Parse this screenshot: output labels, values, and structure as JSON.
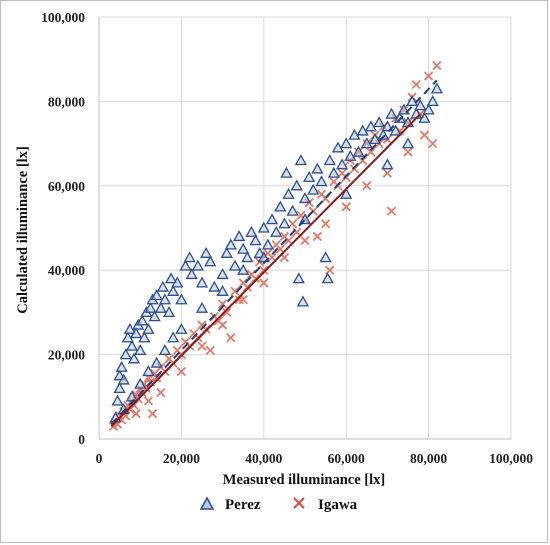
{
  "chart_data": {
    "type": "scatter",
    "xlabel": "Measured illuminance  [lx]",
    "ylabel": "Calculated illuminance  [lx]",
    "xlim": [
      0,
      100000
    ],
    "ylim": [
      0,
      100000
    ],
    "x_ticks": [
      "0",
      "20,000",
      "40,000",
      "60,000",
      "80,000",
      "100,000"
    ],
    "y_ticks": [
      "0",
      "20,000",
      "40,000",
      "60,000",
      "80,000",
      "100,000"
    ],
    "grid": true,
    "legend_position": "bottom",
    "series": [
      {
        "name": "Perez",
        "marker": "triangle",
        "color": "#2e4f8a",
        "fill": "#b7c9e6",
        "trendline": {
          "style": "dashed",
          "color": "#1f3f7a",
          "points": [
            [
              3000,
              3500
            ],
            [
              82000,
              85000
            ]
          ]
        },
        "points": [
          [
            4000,
            5000
          ],
          [
            4500,
            9000
          ],
          [
            5000,
            12000
          ],
          [
            5000,
            15000
          ],
          [
            5500,
            17000
          ],
          [
            6000,
            14000
          ],
          [
            6500,
            20000
          ],
          [
            7000,
            24000
          ],
          [
            7500,
            26000
          ],
          [
            8000,
            22000
          ],
          [
            8500,
            19000
          ],
          [
            9000,
            25000
          ],
          [
            9500,
            27000
          ],
          [
            10000,
            21000
          ],
          [
            10500,
            28000
          ],
          [
            11000,
            24000
          ],
          [
            11500,
            30000
          ],
          [
            12000,
            26000
          ],
          [
            12500,
            31000
          ],
          [
            13000,
            33000
          ],
          [
            13500,
            29000
          ],
          [
            14000,
            34000
          ],
          [
            15000,
            31000
          ],
          [
            15500,
            36000
          ],
          [
            16000,
            33000
          ],
          [
            17000,
            30000
          ],
          [
            17500,
            38000
          ],
          [
            18000,
            35000
          ],
          [
            19000,
            37000
          ],
          [
            20000,
            33000
          ],
          [
            21000,
            41000
          ],
          [
            22000,
            43000
          ],
          [
            22500,
            39000
          ],
          [
            24000,
            41000
          ],
          [
            25000,
            37000
          ],
          [
            26000,
            44000
          ],
          [
            27000,
            42000
          ],
          [
            28000,
            36000
          ],
          [
            30000,
            39000
          ],
          [
            31000,
            44000
          ],
          [
            32000,
            46000
          ],
          [
            33000,
            41000
          ],
          [
            34000,
            48000
          ],
          [
            35000,
            45000
          ],
          [
            36000,
            43000
          ],
          [
            37000,
            49000
          ],
          [
            38000,
            47000
          ],
          [
            39000,
            44000
          ],
          [
            40000,
            50000
          ],
          [
            41000,
            46000
          ],
          [
            42000,
            52000
          ],
          [
            43000,
            49000
          ],
          [
            44000,
            55000
          ],
          [
            45000,
            51000
          ],
          [
            45500,
            63000
          ],
          [
            46000,
            58000
          ],
          [
            47000,
            54000
          ],
          [
            48000,
            60000
          ],
          [
            48500,
            38000
          ],
          [
            49000,
            66000
          ],
          [
            49500,
            32500
          ],
          [
            50000,
            57000
          ],
          [
            51000,
            62000
          ],
          [
            52000,
            59000
          ],
          [
            53000,
            64000
          ],
          [
            54000,
            61000
          ],
          [
            55000,
            43000
          ],
          [
            55500,
            38000
          ],
          [
            56000,
            66000
          ],
          [
            57000,
            63000
          ],
          [
            58000,
            69000
          ],
          [
            59000,
            65000
          ],
          [
            60000,
            70000
          ],
          [
            61000,
            67000
          ],
          [
            62000,
            72000
          ],
          [
            63000,
            68000
          ],
          [
            64000,
            73000
          ],
          [
            65000,
            70000
          ],
          [
            66000,
            74000
          ],
          [
            67000,
            71000
          ],
          [
            68000,
            75000
          ],
          [
            69000,
            72000
          ],
          [
            70000,
            74000
          ],
          [
            71000,
            77000
          ],
          [
            72000,
            73000
          ],
          [
            73000,
            76000
          ],
          [
            74000,
            78000
          ],
          [
            75000,
            75000
          ],
          [
            76000,
            80000
          ],
          [
            77000,
            77000
          ],
          [
            78000,
            79000
          ],
          [
            79000,
            76000
          ],
          [
            80000,
            78000
          ],
          [
            81000,
            80000
          ],
          [
            82000,
            83000
          ],
          [
            6000,
            7000
          ],
          [
            8000,
            10000
          ],
          [
            10000,
            13000
          ],
          [
            12000,
            16000
          ],
          [
            14000,
            18000
          ],
          [
            16000,
            21000
          ],
          [
            18000,
            24000
          ],
          [
            20000,
            26000
          ],
          [
            25000,
            31000
          ],
          [
            30000,
            35000
          ],
          [
            35000,
            40000
          ],
          [
            40000,
            43000
          ],
          [
            50000,
            52000
          ],
          [
            60000,
            58000
          ],
          [
            70000,
            65000
          ],
          [
            75000,
            70000
          ]
        ]
      },
      {
        "name": "Igawa",
        "marker": "x",
        "color": "#e07a6a",
        "trendline": {
          "style": "solid",
          "color": "#8b1a1a",
          "points": [
            [
              3000,
              3000
            ],
            [
              78000,
              77000
            ]
          ]
        },
        "points": [
          [
            3500,
            3000
          ],
          [
            4000,
            4000
          ],
          [
            4500,
            3500
          ],
          [
            5000,
            5500
          ],
          [
            5500,
            4500
          ],
          [
            6000,
            6500
          ],
          [
            6500,
            5500
          ],
          [
            7000,
            8000
          ],
          [
            7500,
            7000
          ],
          [
            8000,
            9000
          ],
          [
            8500,
            8000
          ],
          [
            9000,
            10500
          ],
          [
            9500,
            9500
          ],
          [
            10000,
            12000
          ],
          [
            10500,
            11000
          ],
          [
            11000,
            13000
          ],
          [
            11500,
            12000
          ],
          [
            12000,
            14500
          ],
          [
            12500,
            13500
          ],
          [
            13000,
            6000
          ],
          [
            13500,
            15500
          ],
          [
            14000,
            14500
          ],
          [
            15000,
            17000
          ],
          [
            16000,
            16000
          ],
          [
            17000,
            19000
          ],
          [
            18000,
            18000
          ],
          [
            19000,
            21000
          ],
          [
            20000,
            20000
          ],
          [
            21000,
            23000
          ],
          [
            22000,
            22000
          ],
          [
            23000,
            25000
          ],
          [
            24000,
            24000
          ],
          [
            25000,
            27000
          ],
          [
            26000,
            26000
          ],
          [
            27000,
            21000
          ],
          [
            28000,
            29000
          ],
          [
            29000,
            28000
          ],
          [
            30000,
            32000
          ],
          [
            31000,
            30000
          ],
          [
            32000,
            24000
          ],
          [
            33000,
            35000
          ],
          [
            34000,
            33000
          ],
          [
            35000,
            37000
          ],
          [
            36000,
            36000
          ],
          [
            37000,
            39000
          ],
          [
            38000,
            38000
          ],
          [
            39000,
            42000
          ],
          [
            40000,
            40000
          ],
          [
            41000,
            44000
          ],
          [
            42000,
            43000
          ],
          [
            43000,
            46000
          ],
          [
            44000,
            45000
          ],
          [
            45000,
            48000
          ],
          [
            46000,
            47000
          ],
          [
            47000,
            51000
          ],
          [
            48000,
            49000
          ],
          [
            49000,
            53000
          ],
          [
            50000,
            52000
          ],
          [
            51000,
            56000
          ],
          [
            52000,
            54000
          ],
          [
            53000,
            48000
          ],
          [
            54000,
            58000
          ],
          [
            55000,
            57000
          ],
          [
            56000,
            40000
          ],
          [
            57000,
            61000
          ],
          [
            58000,
            60000
          ],
          [
            59000,
            63000
          ],
          [
            60000,
            62000
          ],
          [
            61000,
            66000
          ],
          [
            62000,
            64000
          ],
          [
            63000,
            68000
          ],
          [
            64000,
            66000
          ],
          [
            65000,
            70000
          ],
          [
            66000,
            68000
          ],
          [
            67000,
            72000
          ],
          [
            68000,
            70000
          ],
          [
            69000,
            74000
          ],
          [
            70000,
            71000
          ],
          [
            71000,
            54000
          ],
          [
            72000,
            76000
          ],
          [
            73000,
            73000
          ],
          [
            74000,
            78000
          ],
          [
            75000,
            75000
          ],
          [
            76000,
            81000
          ],
          [
            77000,
            84000
          ],
          [
            78000,
            77000
          ],
          [
            79000,
            72000
          ],
          [
            80000,
            86000
          ],
          [
            81000,
            70000
          ],
          [
            82000,
            88500
          ],
          [
            9000,
            6000
          ],
          [
            12000,
            9000
          ],
          [
            15000,
            11000
          ],
          [
            20000,
            16000
          ],
          [
            25000,
            22000
          ],
          [
            30000,
            27000
          ],
          [
            35000,
            33000
          ],
          [
            40000,
            37000
          ],
          [
            45000,
            43000
          ],
          [
            50000,
            47000
          ],
          [
            55000,
            51000
          ],
          [
            60000,
            55000
          ],
          [
            65000,
            60000
          ],
          [
            70000,
            63000
          ],
          [
            75000,
            68000
          ]
        ]
      }
    ]
  }
}
